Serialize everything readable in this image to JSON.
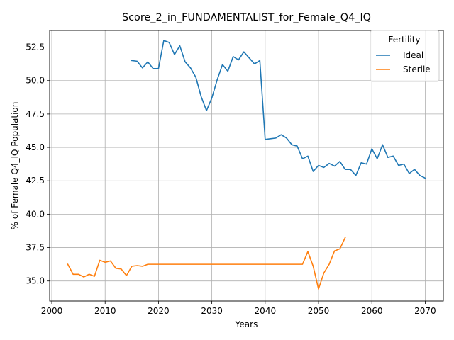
{
  "chart_data": {
    "type": "line",
    "title": "Score_2_in_FUNDAMENTALIST_for_Female_Q4_IQ",
    "xlabel": "Years",
    "ylabel": "% of Female Q4_IQ Population",
    "xlim": [
      1999.6,
      2073.4
    ],
    "ylim": [
      33.5,
      53.75
    ],
    "xticks": [
      2000,
      2010,
      2020,
      2030,
      2040,
      2050,
      2060,
      2070
    ],
    "yticks": [
      35.0,
      37.5,
      40.0,
      42.5,
      45.0,
      47.5,
      50.0,
      52.5
    ],
    "ytick_labels": [
      "35.0",
      "37.5",
      "40.0",
      "42.5",
      "45.0",
      "47.5",
      "50.0",
      "52.5"
    ],
    "grid": true,
    "legend": {
      "title": "Fertility",
      "placement": "top-right"
    },
    "series": [
      {
        "name": "Ideal",
        "color": "#1f77b4",
        "x": [
          2015,
          2016,
          2017,
          2018,
          2019,
          2020,
          2021,
          2022,
          2023,
          2024,
          2025,
          2026,
          2027,
          2028,
          2029,
          2030,
          2031,
          2032,
          2033,
          2034,
          2035,
          2036,
          2037,
          2038,
          2039,
          2040,
          2041,
          2042,
          2043,
          2044,
          2045,
          2046,
          2047,
          2048,
          2049,
          2050,
          2051,
          2052,
          2053,
          2054,
          2055,
          2056,
          2057,
          2058,
          2059,
          2060,
          2061,
          2062,
          2063,
          2064,
          2065,
          2066,
          2067,
          2068,
          2069,
          2070
        ],
        "y": [
          51.5,
          51.45,
          50.95,
          51.4,
          50.9,
          50.9,
          53.0,
          52.85,
          51.95,
          52.6,
          51.4,
          50.95,
          50.25,
          48.8,
          47.75,
          48.7,
          50.05,
          51.2,
          50.7,
          51.8,
          51.55,
          52.15,
          51.7,
          51.25,
          51.5,
          45.6,
          45.65,
          45.7,
          45.95,
          45.7,
          45.2,
          45.1,
          44.15,
          44.35,
          43.2,
          43.65,
          43.5,
          43.8,
          43.6,
          43.95,
          43.35,
          43.35,
          42.9,
          43.85,
          43.75,
          44.9,
          44.15,
          45.2,
          44.25,
          44.35,
          43.65,
          43.75,
          43.05,
          43.35,
          42.9,
          42.7
        ]
      },
      {
        "name": "Sterile",
        "color": "#ff7f0e",
        "x": [
          2003,
          2004,
          2005,
          2006,
          2007,
          2008,
          2009,
          2010,
          2011,
          2012,
          2013,
          2014,
          2015,
          2016,
          2017,
          2018,
          2019,
          2020,
          2021,
          2022,
          2023,
          2024,
          2025,
          2026,
          2027,
          2028,
          2029,
          2030,
          2031,
          2032,
          2033,
          2034,
          2035,
          2036,
          2037,
          2038,
          2039,
          2040,
          2041,
          2042,
          2043,
          2044,
          2045,
          2046,
          2047,
          2048,
          2049,
          2050,
          2051,
          2052,
          2053,
          2054,
          2055
        ],
        "y": [
          36.25,
          35.5,
          35.5,
          35.3,
          35.5,
          35.35,
          36.55,
          36.4,
          36.5,
          35.95,
          35.9,
          35.4,
          36.1,
          36.15,
          36.1,
          36.25,
          36.25,
          36.25,
          36.25,
          36.25,
          36.25,
          36.25,
          36.25,
          36.25,
          36.25,
          36.25,
          36.25,
          36.25,
          36.25,
          36.25,
          36.25,
          36.25,
          36.25,
          36.25,
          36.25,
          36.25,
          36.25,
          36.25,
          36.25,
          36.25,
          36.25,
          36.25,
          36.25,
          36.25,
          36.25,
          37.2,
          36.1,
          34.4,
          35.6,
          36.25,
          37.25,
          37.4,
          38.25
        ]
      }
    ]
  }
}
